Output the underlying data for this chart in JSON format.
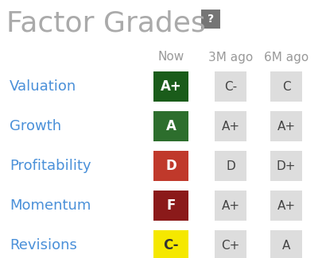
{
  "title": "Factor Grades",
  "background_color": "#ffffff",
  "title_color": "#aaaaaa",
  "title_fontsize": 26,
  "label_color": "#4a90d9",
  "label_fontsize": 13,
  "header_color": "#999999",
  "header_fontsize": 11,
  "rows": [
    "Valuation",
    "Growth",
    "Profitability",
    "Momentum",
    "Revisions"
  ],
  "columns": [
    "Now",
    "3M ago",
    "6M ago"
  ],
  "grades": [
    [
      "A+",
      "C-",
      "C"
    ],
    [
      "A",
      "A+",
      "A+"
    ],
    [
      "D",
      "D",
      "D+"
    ],
    [
      "F",
      "A+",
      "A+"
    ],
    [
      "C-",
      "C+",
      "A"
    ]
  ],
  "now_colors": [
    "#1a5c1a",
    "#2d6e2d",
    "#c0392b",
    "#8b1a1a",
    "#f5e800"
  ],
  "now_text_colors": [
    "#ffffff",
    "#ffffff",
    "#ffffff",
    "#ffffff",
    "#333333"
  ],
  "hist_bg_color": "#dddddd",
  "hist_text_color": "#444444",
  "question_box_color": "#757575",
  "question_text_color": "#ffffff",
  "fig_width": 4.05,
  "fig_height": 3.25,
  "dpi": 100
}
